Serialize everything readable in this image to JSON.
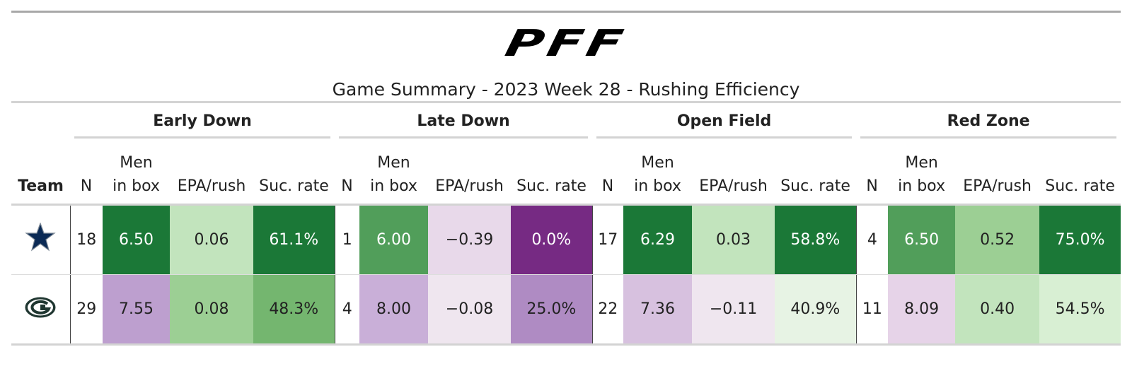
{
  "header": {
    "logo": "PFF",
    "title": "Game Summary - 2023 Week 28 - Rushing Efficiency"
  },
  "table": {
    "team_header": "Team",
    "groups": [
      "Early Down",
      "Late Down",
      "Open Field",
      "Red Zone"
    ],
    "columns": [
      "N",
      "Men in box",
      "EPA/rush",
      "Suc. rate"
    ],
    "rows": [
      {
        "cells": [
          "18",
          "6.50",
          "0.06",
          "61.1%",
          "1",
          "6.00",
          "−0.39",
          "0.0%",
          "17",
          "6.29",
          "0.03",
          "58.8%",
          "4",
          "6.50",
          "0.52",
          "75.0%"
        ],
        "colors": [
          "#ffffff",
          "#1b7837",
          "#c2e4bd",
          "#1b7837",
          "#ffffff",
          "#519e5a",
          "#e8d9ea",
          "#762a83",
          "#ffffff",
          "#1b7837",
          "#c2e4bd",
          "#1b7837",
          "#ffffff",
          "#519e5a",
          "#9ccf94",
          "#1b7837"
        ]
      },
      {
        "cells": [
          "29",
          "7.55",
          "0.08",
          "48.3%",
          "4",
          "8.00",
          "−0.08",
          "25.0%",
          "22",
          "7.36",
          "−0.11",
          "40.9%",
          "11",
          "8.09",
          "0.40",
          "54.5%"
        ],
        "colors": [
          "#ffffff",
          "#bd9fcf",
          "#9ccf94",
          "#74b66f",
          "#ffffff",
          "#c9afd8",
          "#efe6ef",
          "#af8bc3",
          "#ffffff",
          "#d7c1df",
          "#efe6ef",
          "#e7f3e4",
          "#ffffff",
          "#e6d3e8",
          "#c2e4bd",
          "#d8efd3"
        ]
      }
    ]
  }
}
